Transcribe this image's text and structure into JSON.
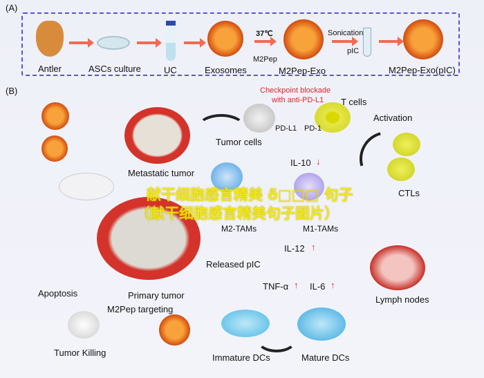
{
  "panel_a": {
    "label": "(A)",
    "steps": [
      "Antler",
      "ASCs culture",
      "UC",
      "Exosomes",
      "M2Pep-Exo",
      "M2Pep-Exo(pIC)"
    ],
    "temp": "37℃",
    "m2pep": "M2Pep",
    "sonication": "Sonication",
    "pic": "pIC"
  },
  "panel_b": {
    "label": "(B)",
    "checkpoint": "Checkpoint blockade",
    "checkpoint2": "with anti-PD-L1",
    "t_cells": "T cells",
    "pd_l1": "PD-L1",
    "pd_1": "PD-1",
    "tumor_cells": "Tumor cells",
    "activation": "Activation",
    "metastatic_tumor": "Metastatic tumor",
    "il10": "IL-10",
    "m2_tams": "M2-TAMs",
    "m1_tams": "M1-TAMs",
    "ctls": "CTLs",
    "il12": "IL-12",
    "released_pic": "Released pIC",
    "tnf": "TNF-α",
    "il6": "IL-6",
    "lymph_nodes": "Lymph nodes",
    "apoptosis": "Apoptosis",
    "primary_tumor": "Primary tumor",
    "m2pep_targeting": "M2Pep targeting",
    "tumor_killing": "Tumor Killing",
    "immature_dcs": "Immature DCs",
    "mature_dcs": "Mature DCs",
    "down_arrow": "↓",
    "up_arrow": "↑"
  },
  "watermark": {
    "line1": "献干细胞感言精美 ð□□□ 句子",
    "line2": "（献干细胞感言精美句子图片）"
  },
  "colors": {
    "arrow": "#f26a4f",
    "border": "#5a4fe0",
    "red": "#e8202a",
    "watermark": "#f3e600"
  }
}
